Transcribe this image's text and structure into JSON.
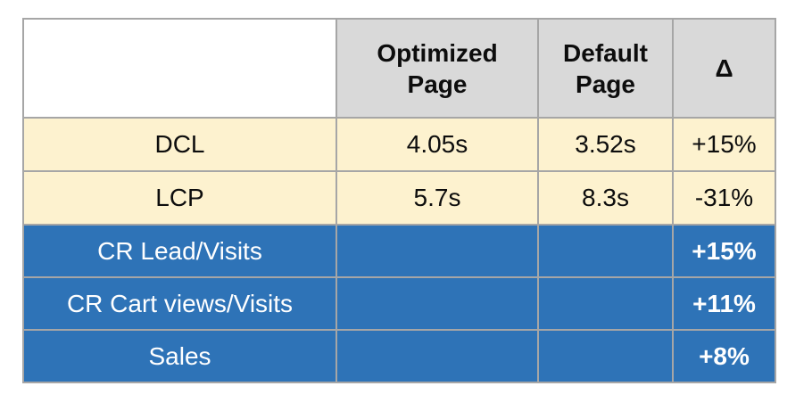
{
  "colors": {
    "header_bg": "#d9d9d9",
    "metric_row_bg": "#fdf2cf",
    "business_row_bg": "#2e73b7",
    "border": "#a6a6a6",
    "text_dark": "#0d0d0d",
    "text_light": "#ffffff"
  },
  "table": {
    "header": {
      "corner": "",
      "optimized": "Optimized\nPage",
      "default": "Default\nPage",
      "delta": "Δ"
    },
    "rows": [
      {
        "label": "DCL",
        "optimized": "4.05s",
        "default": "3.52s",
        "delta": "+15%"
      },
      {
        "label": "LCP",
        "optimized": "5.7s",
        "default": "8.3s",
        "delta": "-31%"
      },
      {
        "label": "CR Lead/Visits",
        "optimized": "",
        "default": "",
        "delta": "+15%"
      },
      {
        "label": "CR Cart views/Visits",
        "optimized": "",
        "default": "",
        "delta": "+11%"
      },
      {
        "label": "Sales",
        "optimized": "",
        "default": "",
        "delta": "+8%"
      }
    ]
  },
  "chart_data": {
    "type": "table",
    "columns": [
      "",
      "Optimized Page",
      "Default Page",
      "Δ"
    ],
    "rows": [
      {
        "label": "DCL",
        "optimized_page": "4.05s",
        "default_page": "3.52s",
        "delta": "+15%",
        "group": "performance"
      },
      {
        "label": "LCP",
        "optimized_page": "5.7s",
        "default_page": "8.3s",
        "delta": "-31%",
        "group": "performance"
      },
      {
        "label": "CR Lead/Visits",
        "optimized_page": "",
        "default_page": "",
        "delta": "+15%",
        "group": "business"
      },
      {
        "label": "CR Cart views/Visits",
        "optimized_page": "",
        "default_page": "",
        "delta": "+11%",
        "group": "business"
      },
      {
        "label": "Sales",
        "optimized_page": "",
        "default_page": "",
        "delta": "+8%",
        "group": "business"
      }
    ],
    "layout_hints": {
      "performance_rows_bg": "#fdf2cf",
      "business_rows_bg": "#2e73b7",
      "header_bg": "#d9d9d9",
      "empty_cells": "business rows have no per-page values, only delta"
    }
  }
}
